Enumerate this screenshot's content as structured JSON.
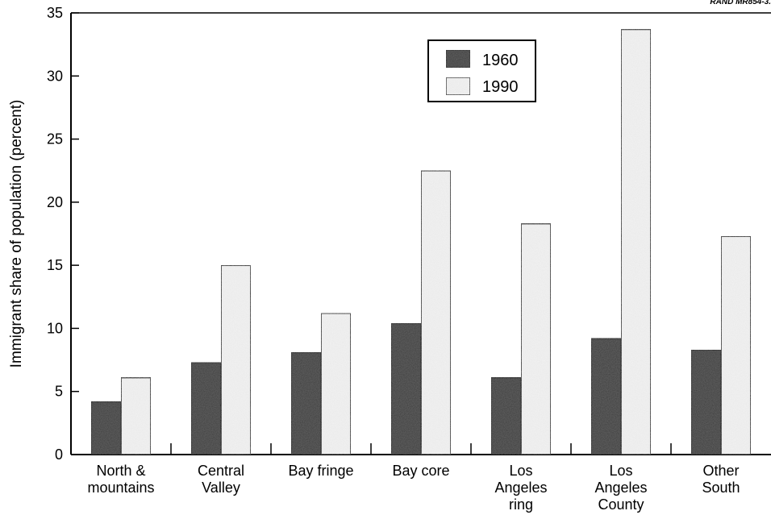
{
  "corner_note": "RAND MR854-3.",
  "colors": {
    "series_1960": "#3a3a3a",
    "series_1990": "#f4f4f4",
    "stroke": "#000000"
  },
  "chart_data": {
    "type": "bar",
    "title": "",
    "xlabel": "",
    "ylabel": "Immigrant share of population (percent)",
    "ylim": [
      0,
      35
    ],
    "yticks": [
      "0",
      "5",
      "10",
      "15",
      "20",
      "25",
      "30",
      "35"
    ],
    "grid": false,
    "legend_position": "top-right",
    "categories": [
      [
        "North &",
        "mountains"
      ],
      [
        "Central",
        "Valley"
      ],
      [
        "Bay fringe"
      ],
      [
        "Bay core"
      ],
      [
        "Los",
        "Angeles",
        "ring"
      ],
      [
        "Los",
        "Angeles",
        "County"
      ],
      [
        "Other",
        "South"
      ]
    ],
    "series": [
      {
        "name": "1960",
        "values": [
          4.2,
          7.3,
          8.1,
          10.4,
          6.1,
          9.2,
          8.3
        ]
      },
      {
        "name": "1990",
        "values": [
          6.1,
          15.0,
          11.2,
          22.5,
          18.3,
          33.7,
          17.3
        ]
      }
    ]
  }
}
